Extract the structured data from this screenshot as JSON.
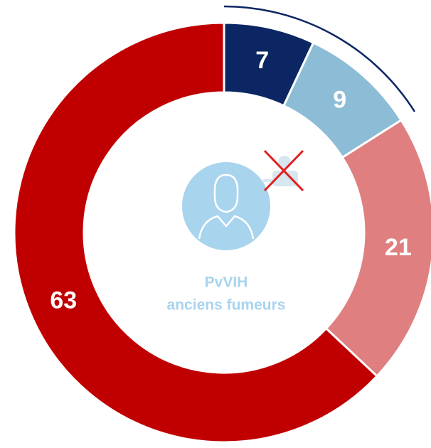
{
  "chart_data": {
    "type": "donut",
    "categories": [
      null,
      null,
      null,
      null
    ],
    "values": [
      7,
      9,
      21,
      63
    ],
    "colors": [
      "#0b2663",
      "#8dbdd6",
      "#e07f80",
      "#c00000"
    ],
    "center_text": [
      "PvVIH",
      "anciens fumeurs"
    ]
  }
}
